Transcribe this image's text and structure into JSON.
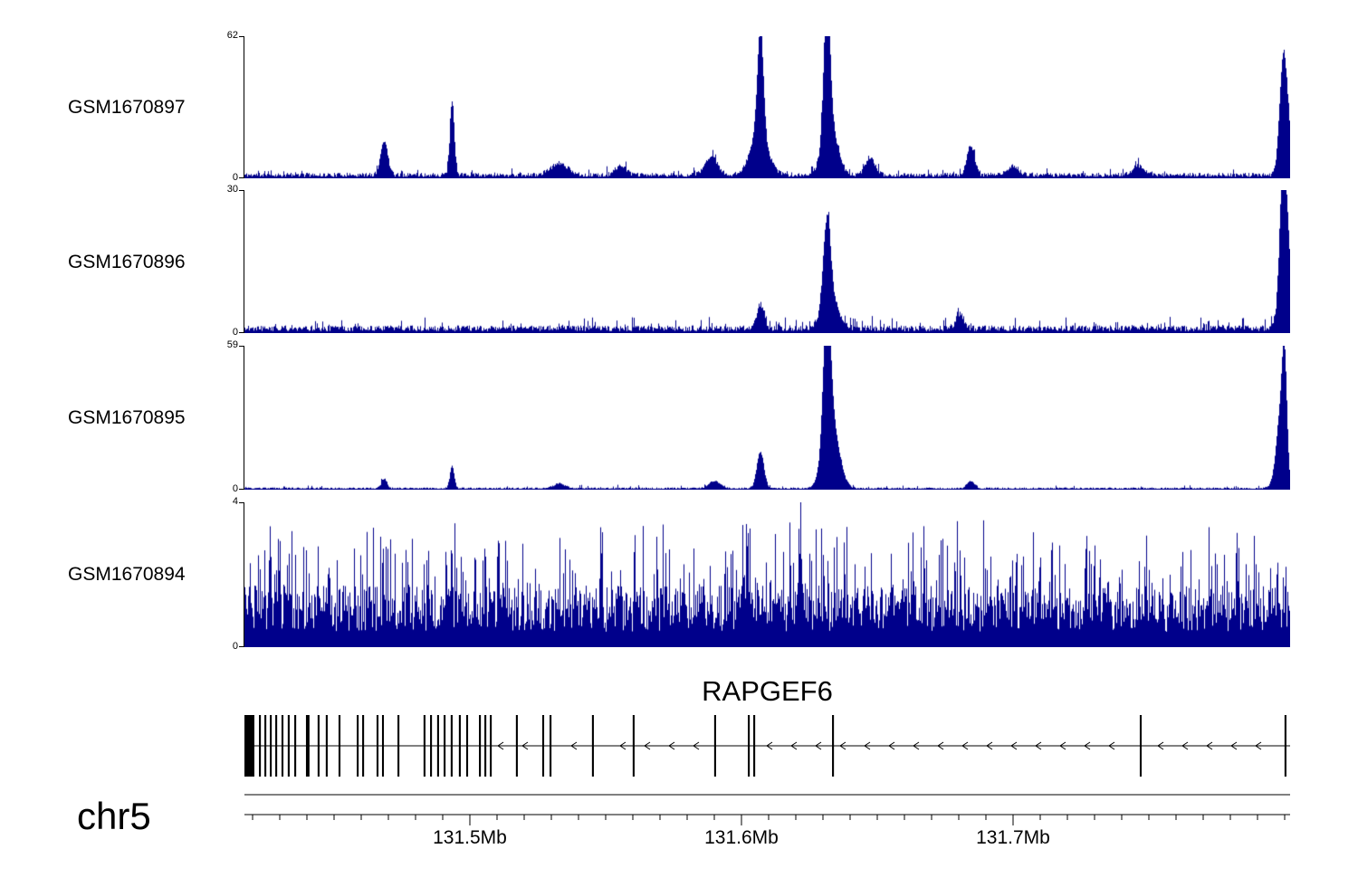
{
  "chart_data": {
    "type": "area",
    "subtype": "genome-coverage-tracks",
    "chromosome": "chr5",
    "x_unit": "Mb",
    "x_range": [
      131.417,
      131.802
    ],
    "axis": {
      "major_ticks": [
        131.5,
        131.6,
        131.7
      ],
      "major_tick_labels": [
        "131.5Mb",
        "131.6Mb",
        "131.7Mb"
      ],
      "minor_tick_step": 0.01
    },
    "signal_color": "#00008B",
    "tracks": [
      {
        "label": "GSM1670897",
        "ylim": [
          0,
          62
        ],
        "y_tick_labels": [
          "62",
          "0"
        ],
        "noise": {
          "base": 2.4,
          "spike_prob": 0.08,
          "spike_add": 3.0,
          "seed": 11
        },
        "peaks": [
          [
            131.4685,
            15,
            0.0013
          ],
          [
            131.4935,
            32,
            0.0008
          ],
          [
            131.533,
            5,
            0.0032
          ],
          [
            131.5555,
            4,
            0.002
          ],
          [
            131.589,
            8,
            0.0022
          ],
          [
            131.6065,
            18,
            0.0032
          ],
          [
            131.607,
            47,
            0.0011
          ],
          [
            131.6315,
            59,
            0.0011
          ],
          [
            131.6325,
            24,
            0.0026
          ],
          [
            131.6475,
            7,
            0.0018
          ],
          [
            131.6845,
            13,
            0.0014
          ],
          [
            131.7,
            4,
            0.002
          ],
          [
            131.746,
            4,
            0.002
          ],
          [
            131.7995,
            40,
            0.0013
          ],
          [
            131.801,
            18,
            0.002
          ]
        ]
      },
      {
        "label": "GSM1670896",
        "ylim": [
          0,
          30
        ],
        "y_tick_labels": [
          "30",
          "0"
        ],
        "noise": {
          "base": 1.6,
          "spike_prob": 0.1,
          "spike_add": 2.2,
          "seed": 22
        },
        "peaks": [
          [
            131.607,
            5,
            0.0013
          ],
          [
            131.6315,
            17,
            0.0013
          ],
          [
            131.6325,
            7,
            0.0028
          ],
          [
            131.6805,
            3,
            0.0015
          ],
          [
            131.7995,
            27,
            0.0012
          ],
          [
            131.801,
            14,
            0.0022
          ]
        ]
      },
      {
        "label": "GSM1670895",
        "ylim": [
          0,
          59
        ],
        "y_tick_labels": [
          "59",
          "0"
        ],
        "noise": {
          "base": 0.9,
          "spike_prob": 0.05,
          "spike_add": 1.2,
          "seed": 33
        },
        "peaks": [
          [
            131.4685,
            4,
            0.001
          ],
          [
            131.4935,
            9,
            0.0008
          ],
          [
            131.533,
            2,
            0.002
          ],
          [
            131.59,
            3,
            0.002
          ],
          [
            131.607,
            15,
            0.0013
          ],
          [
            131.6315,
            56,
            0.0013
          ],
          [
            131.633,
            28,
            0.0028
          ],
          [
            131.6845,
            3,
            0.0014
          ],
          [
            131.797,
            2,
            0.002
          ],
          [
            131.7985,
            28,
            0.0015
          ],
          [
            131.8,
            42,
            0.0009
          ]
        ]
      },
      {
        "label": "GSM1670894",
        "ylim": [
          0,
          4
        ],
        "y_tick_labels": [
          "4",
          "0"
        ],
        "noise": {
          "base": 1.7,
          "spike_prob": 0.3,
          "spike_add": 2.0,
          "seed": 44
        },
        "peaks": [
          [
            131.622,
            1.5,
            0.0006
          ],
          [
            131.602,
            1.2,
            0.0006
          ]
        ]
      }
    ],
    "gene_track": {
      "gene_name": "RAPGEF6",
      "strand": "-",
      "exons": [
        [
          131.4188,
          0.0037
        ],
        [
          131.4227,
          0.0007
        ],
        [
          131.4247,
          0.0007
        ],
        [
          131.4267,
          0.0007
        ],
        [
          131.4287,
          0.0007
        ],
        [
          131.431,
          0.0007
        ],
        [
          131.4333,
          0.0007
        ],
        [
          131.4357,
          0.0007
        ],
        [
          131.4403,
          0.0013
        ],
        [
          131.4443,
          0.0007
        ],
        [
          131.4473,
          0.0007
        ],
        [
          131.452,
          0.0007
        ],
        [
          131.4587,
          0.0007
        ],
        [
          131.4607,
          0.0007
        ],
        [
          131.466,
          0.0007
        ],
        [
          131.468,
          0.0007
        ],
        [
          131.4737,
          0.0007
        ],
        [
          131.4833,
          0.0007
        ],
        [
          131.4857,
          0.0007
        ],
        [
          131.4883,
          0.0007
        ],
        [
          131.4907,
          0.0007
        ],
        [
          131.4933,
          0.0007
        ],
        [
          131.4963,
          0.0007
        ],
        [
          131.499,
          0.0007
        ],
        [
          131.5037,
          0.0007
        ],
        [
          131.5057,
          0.0007
        ],
        [
          131.5077,
          0.0007
        ],
        [
          131.5173,
          0.0007
        ],
        [
          131.527,
          0.0007
        ],
        [
          131.5297,
          0.0007
        ],
        [
          131.5453,
          0.0007
        ],
        [
          131.5603,
          0.0007
        ],
        [
          131.5903,
          0.0007
        ],
        [
          131.6027,
          0.0007
        ],
        [
          131.6047,
          0.0007
        ],
        [
          131.6337,
          0.0007
        ],
        [
          131.747,
          0.0007
        ],
        [
          131.8003,
          0.0007
        ]
      ]
    }
  }
}
